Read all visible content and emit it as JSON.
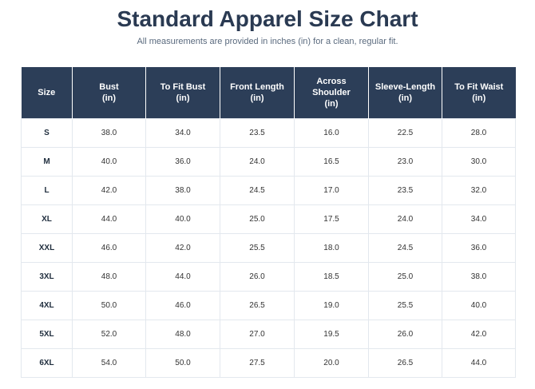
{
  "title": "Standard Apparel Size Chart",
  "subtitle": "All measurements are provided in inches (in) for a clean, regular fit.",
  "table": {
    "headers": [
      "Size",
      "Bust\n(in)",
      "To Fit Bust\n(in)",
      "Front Length\n(in)",
      "Across\nShoulder\n(in)",
      "Sleeve-Length\n(in)",
      "To Fit Waist\n(in)"
    ],
    "rows": [
      [
        "S",
        "38.0",
        "34.0",
        "23.5",
        "16.0",
        "22.5",
        "28.0"
      ],
      [
        "M",
        "40.0",
        "36.0",
        "24.0",
        "16.5",
        "23.0",
        "30.0"
      ],
      [
        "L",
        "42.0",
        "38.0",
        "24.5",
        "17.0",
        "23.5",
        "32.0"
      ],
      [
        "XL",
        "44.0",
        "40.0",
        "25.0",
        "17.5",
        "24.0",
        "34.0"
      ],
      [
        "XXL",
        "46.0",
        "42.0",
        "25.5",
        "18.0",
        "24.5",
        "36.0"
      ],
      [
        "3XL",
        "48.0",
        "44.0",
        "26.0",
        "18.5",
        "25.0",
        "38.0"
      ],
      [
        "4XL",
        "50.0",
        "46.0",
        "26.5",
        "19.0",
        "25.5",
        "40.0"
      ],
      [
        "5XL",
        "52.0",
        "48.0",
        "27.0",
        "19.5",
        "26.0",
        "42.0"
      ],
      [
        "6XL",
        "54.0",
        "50.0",
        "27.5",
        "20.0",
        "26.5",
        "44.0"
      ]
    ]
  },
  "colors": {
    "header_bg": "#2c3e58",
    "header_text": "#ffffff",
    "title": "#2a3a52",
    "border": "#e3e8ee"
  }
}
